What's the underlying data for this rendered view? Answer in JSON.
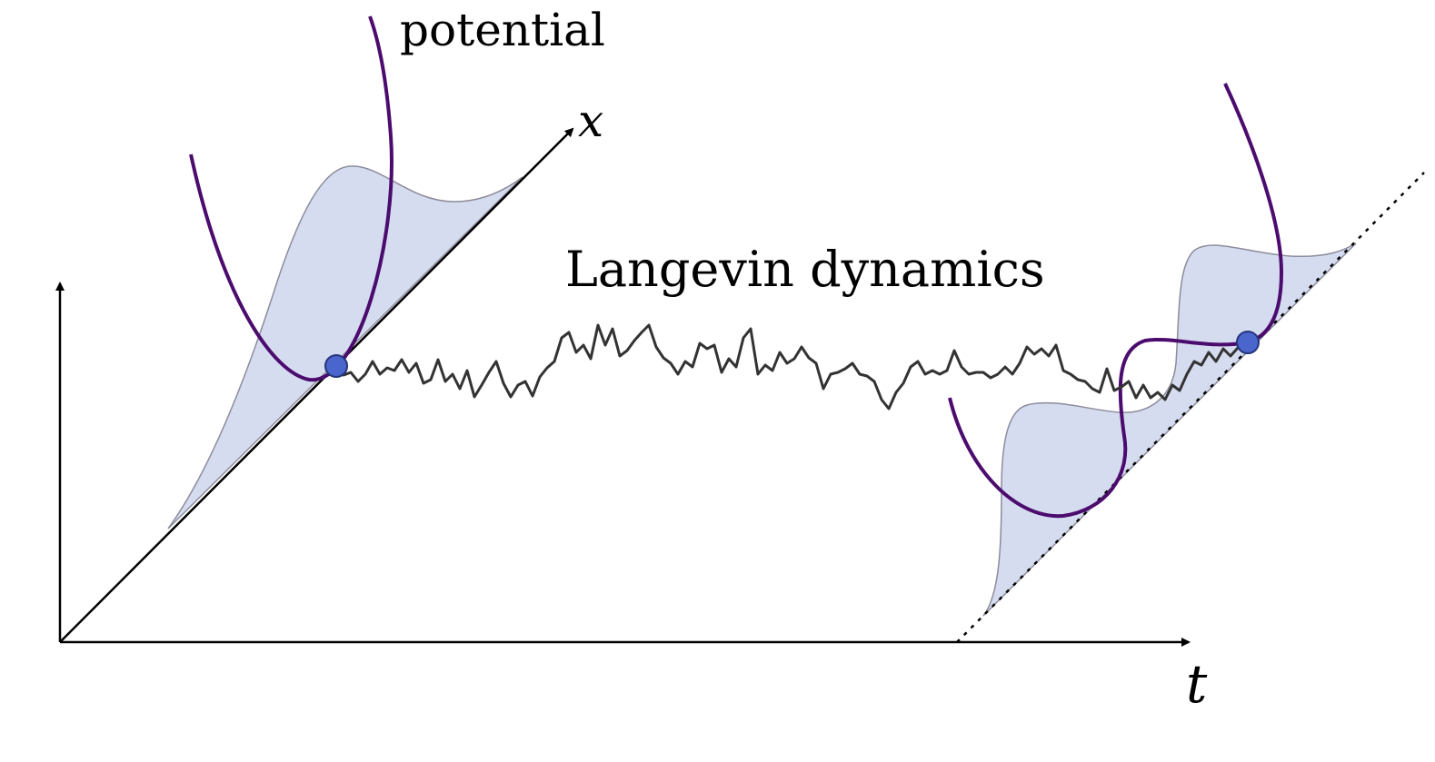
{
  "labels": {
    "potential": "potential",
    "process": "Langevin dynamics",
    "space_axis": "x",
    "time_axis": "t"
  },
  "colors": {
    "axis": "#000000",
    "potential_curve": "#4b0c6e",
    "density_fill": "#d6dcf0",
    "density_edge": "#8c8c9c",
    "trajectory": "#333333",
    "particle_fill": "#4a66cc",
    "particle_edge": "#25357a"
  },
  "icons": {
    "particle": "filled-circle",
    "axis_head": "arrow-head"
  }
}
